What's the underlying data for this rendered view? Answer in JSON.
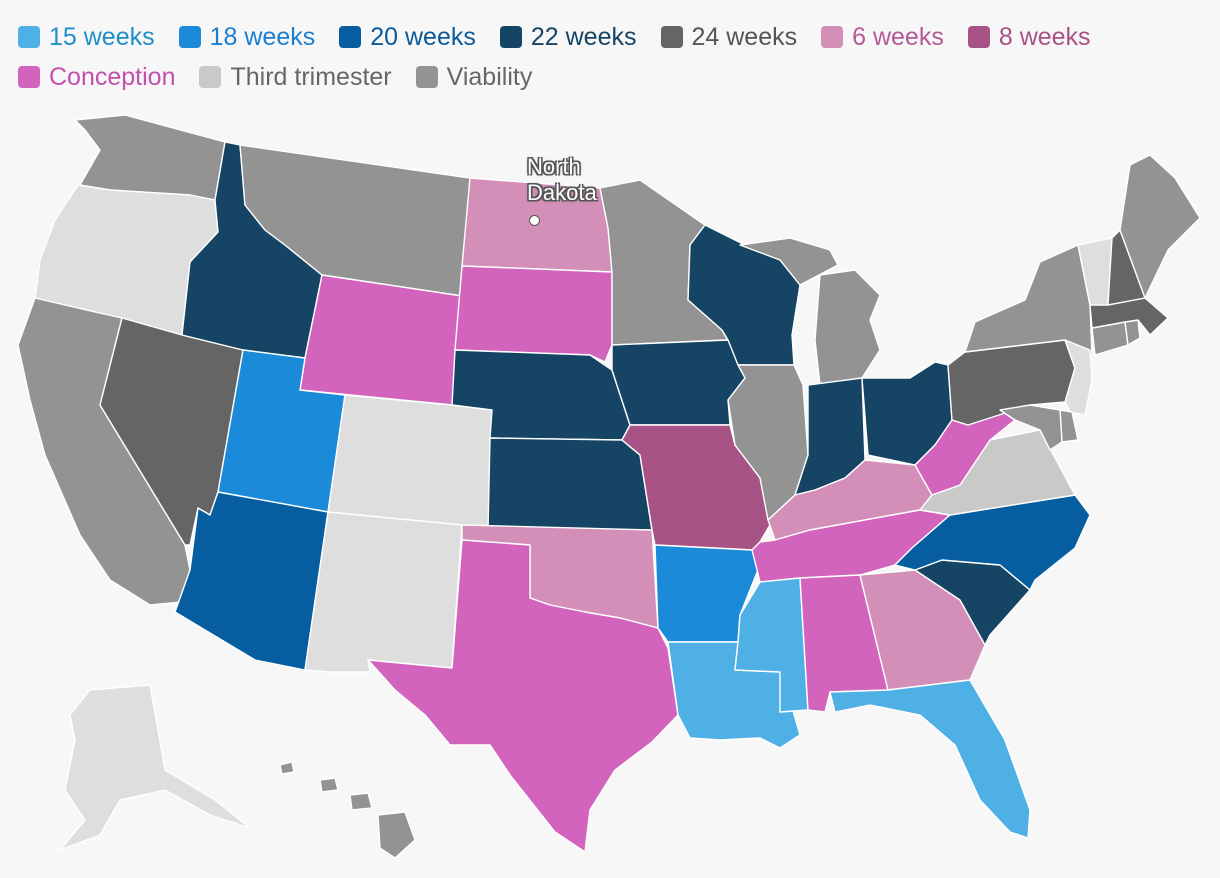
{
  "legend": [
    {
      "key": "w15",
      "label": "15 weeks",
      "color": "#4fb0e6",
      "text_color": "#1f8fc9"
    },
    {
      "key": "w18",
      "label": "18 weeks",
      "color": "#1a8ad9",
      "text_color": "#1a7fd0"
    },
    {
      "key": "w20",
      "label": "20 weeks",
      "color": "#065ea0",
      "text_color": "#0a5a9a"
    },
    {
      "key": "w22",
      "label": "22 weeks",
      "color": "#154464",
      "text_color": "#154464"
    },
    {
      "key": "w24",
      "label": "24 weeks",
      "color": "#656565",
      "text_color": "#555555"
    },
    {
      "key": "w6",
      "label": "6 weeks",
      "color": "#d38fb8",
      "text_color": "#b45a95"
    },
    {
      "key": "w8",
      "label": "8 weeks",
      "color": "#a85385",
      "text_color": "#a85385"
    },
    {
      "key": "conception",
      "label": "Conception",
      "color": "#d264bd",
      "text_color": "#c250ad"
    },
    {
      "key": "third",
      "label": "Third trimester",
      "color": "#c9c9c9",
      "text_color": "#666666"
    },
    {
      "key": "viability",
      "label": "Viability",
      "color": "#939393",
      "text_color": "#666666"
    }
  ],
  "other_color": "#dedede",
  "callout": {
    "line1": "North",
    "line2": "Dakota"
  },
  "states": [
    {
      "name": "Washington",
      "category": "viability"
    },
    {
      "name": "Oregon",
      "category": "other"
    },
    {
      "name": "California",
      "category": "viability"
    },
    {
      "name": "Nevada",
      "category": "w24"
    },
    {
      "name": "Idaho",
      "category": "w22"
    },
    {
      "name": "Montana",
      "category": "viability"
    },
    {
      "name": "Wyoming",
      "category": "conception"
    },
    {
      "name": "Utah",
      "category": "w18"
    },
    {
      "name": "Arizona",
      "category": "w20"
    },
    {
      "name": "Colorado",
      "category": "other"
    },
    {
      "name": "New Mexico",
      "category": "other"
    },
    {
      "name": "North Dakota",
      "category": "w6"
    },
    {
      "name": "South Dakota",
      "category": "conception"
    },
    {
      "name": "Nebraska",
      "category": "w22"
    },
    {
      "name": "Kansas",
      "category": "w22"
    },
    {
      "name": "Oklahoma",
      "category": "w6"
    },
    {
      "name": "Texas",
      "category": "conception"
    },
    {
      "name": "Minnesota",
      "category": "viability"
    },
    {
      "name": "Iowa",
      "category": "w22"
    },
    {
      "name": "Missouri",
      "category": "w8"
    },
    {
      "name": "Arkansas",
      "category": "w18"
    },
    {
      "name": "Louisiana",
      "category": "w15"
    },
    {
      "name": "Wisconsin",
      "category": "w22"
    },
    {
      "name": "Illinois",
      "category": "viability"
    },
    {
      "name": "Michigan",
      "category": "viability"
    },
    {
      "name": "Indiana",
      "category": "w22"
    },
    {
      "name": "Ohio",
      "category": "w22"
    },
    {
      "name": "Kentucky",
      "category": "w6"
    },
    {
      "name": "Tennessee",
      "category": "conception"
    },
    {
      "name": "Mississippi",
      "category": "w15"
    },
    {
      "name": "Alabama",
      "category": "conception"
    },
    {
      "name": "Georgia",
      "category": "w6"
    },
    {
      "name": "Florida",
      "category": "w15"
    },
    {
      "name": "South Carolina",
      "category": "w22"
    },
    {
      "name": "North Carolina",
      "category": "w20"
    },
    {
      "name": "Virginia",
      "category": "third"
    },
    {
      "name": "West Virginia",
      "category": "conception"
    },
    {
      "name": "Pennsylvania",
      "category": "w24"
    },
    {
      "name": "New York",
      "category": "viability"
    },
    {
      "name": "New Jersey",
      "category": "other"
    },
    {
      "name": "Delaware",
      "category": "viability"
    },
    {
      "name": "Maryland",
      "category": "viability"
    },
    {
      "name": "Connecticut",
      "category": "viability"
    },
    {
      "name": "Rhode Island",
      "category": "viability"
    },
    {
      "name": "Massachusetts",
      "category": "w24"
    },
    {
      "name": "Vermont",
      "category": "other"
    },
    {
      "name": "New Hampshire",
      "category": "w24"
    },
    {
      "name": "Maine",
      "category": "viability"
    },
    {
      "name": "Alaska",
      "category": "other"
    },
    {
      "name": "Hawaii",
      "category": "viability"
    }
  ]
}
